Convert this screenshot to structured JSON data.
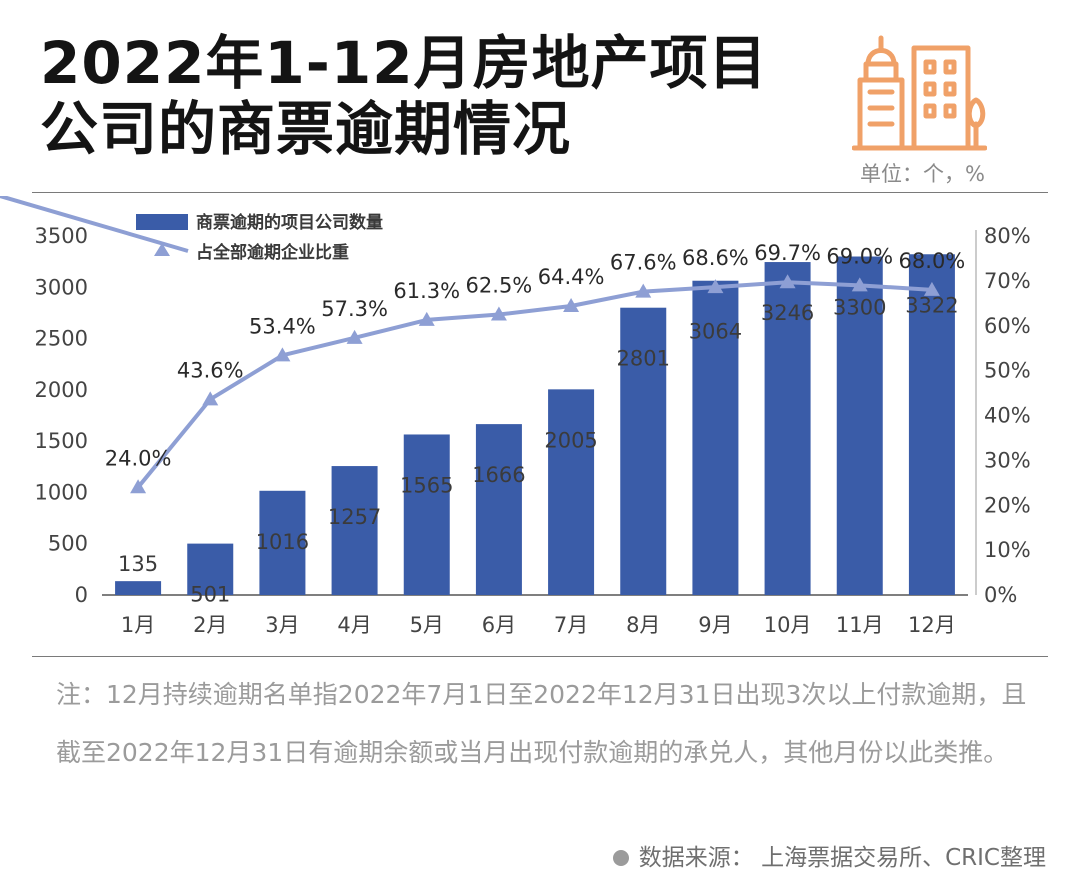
{
  "header": {
    "title_line1": "2022年1-12月房地产项目",
    "title_line2": "公司的商票逾期情况",
    "unit": "单位：个，%"
  },
  "colors": {
    "bar": "#3a5ca8",
    "line": "#8e9fd4",
    "icon": "#f0a168"
  },
  "icon": "city-buildings-icon",
  "chart_data": {
    "type": "bar",
    "categories": [
      "1月",
      "2月",
      "3月",
      "4月",
      "5月",
      "6月",
      "7月",
      "8月",
      "9月",
      "10月",
      "11月",
      "12月"
    ],
    "series": [
      {
        "name": "商票逾期的项目公司数量",
        "type": "bar",
        "axis": "left",
        "values": [
          135,
          501,
          1016,
          1257,
          1565,
          1666,
          2005,
          2801,
          3064,
          3246,
          3300,
          3322
        ],
        "labels": [
          "135",
          "501",
          "1016",
          "1257",
          "1565",
          "1666",
          "2005",
          "2801",
          "3064",
          "3246",
          "3300",
          "3322"
        ]
      },
      {
        "name": "占全部逾期企业比重",
        "type": "line",
        "axis": "right",
        "values": [
          24.0,
          43.6,
          53.4,
          57.3,
          61.3,
          62.5,
          64.4,
          67.6,
          68.6,
          69.7,
          69.0,
          68.0
        ],
        "labels": [
          "24.0%",
          "43.6%",
          "53.4%",
          "57.3%",
          "61.3%",
          "62.5%",
          "64.4%",
          "67.6%",
          "68.6%",
          "69.7%",
          "69.0%",
          "68.0%"
        ]
      }
    ],
    "ylim_left": [
      0,
      3500
    ],
    "yticks_left": [
      "0",
      "500",
      "1000",
      "1500",
      "2000",
      "2500",
      "3000",
      "3500"
    ],
    "ylim_right": [
      0,
      80
    ],
    "yticks_right": [
      "0%",
      "10%",
      "20%",
      "30%",
      "40%",
      "50%",
      "60%",
      "70%",
      "80%"
    ],
    "legend_position": "top-left"
  },
  "note": "注：12月持续逾期名单指2022年7月1日至2022年12月31日出现3次以上付款逾期，且截至2022年12月31日有逾期余额或当月出现付款逾期的承兑人，其他月份以此类推。",
  "source": "数据来源：  上海票据交易所、CRIC整理"
}
